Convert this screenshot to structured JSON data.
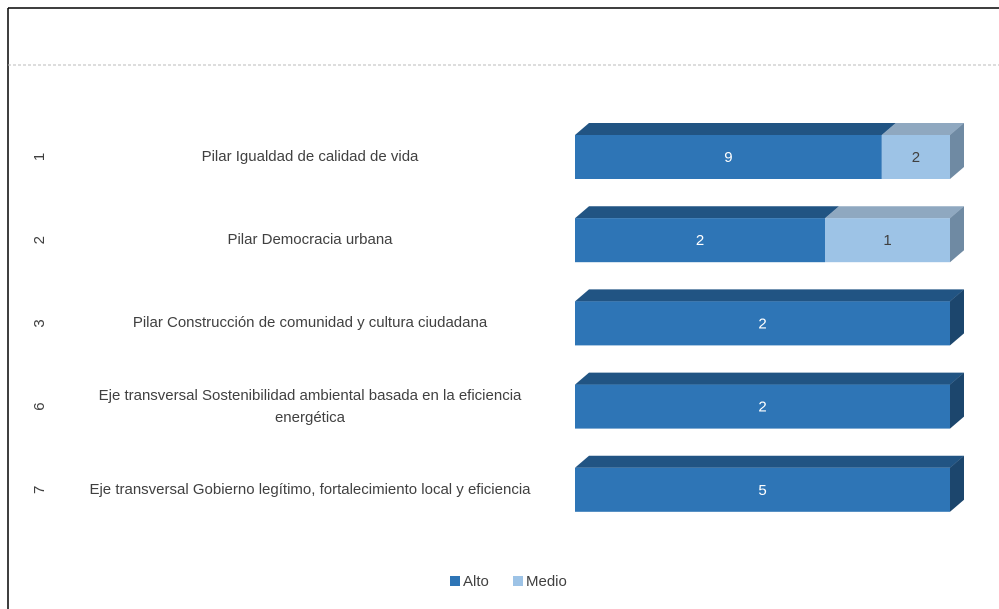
{
  "chart_data": {
    "type": "bar",
    "orientation": "horizontal",
    "stacked": "percent",
    "three_d": true,
    "category_codes": [
      "1",
      "2",
      "3",
      "6",
      "7"
    ],
    "categories": [
      "Pilar Igualdad de calidad de vida",
      "Pilar Democracia urbana",
      "Pilar Construcción de comunidad y cultura ciudadana",
      "Eje transversal Sostenibilidad ambiental basada en la eficiencia energética",
      "Eje transversal Gobierno legítimo, fortalecimiento local y eficiencia"
    ],
    "series": [
      {
        "name": "Alto",
        "color": "#2e75b6",
        "values": [
          9,
          2,
          2,
          2,
          5
        ]
      },
      {
        "name": "Medio",
        "color": "#9dc3e6",
        "values": [
          2,
          1,
          null,
          null,
          null
        ]
      }
    ],
    "legend": "bottom"
  }
}
